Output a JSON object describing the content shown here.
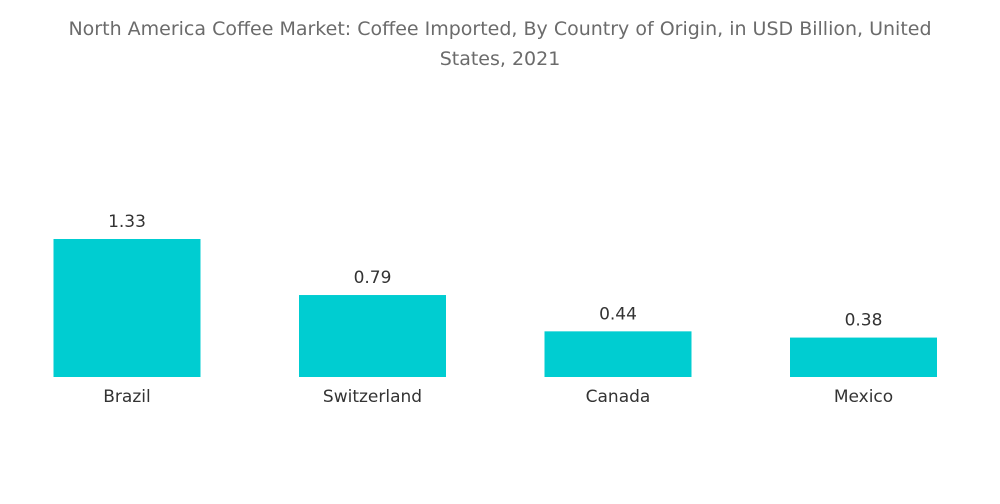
{
  "chart_data": {
    "type": "bar",
    "title_line1": "North America Coffee Market: Coffee Imported, By Country of Origin, in USD Billion, United",
    "title_line2": "States, 2021",
    "categories": [
      "Brazil",
      "Switzerland",
      "Canada",
      "Mexico"
    ],
    "values": [
      1.33,
      0.79,
      0.44,
      0.38
    ],
    "value_labels": [
      "1.33",
      "0.79",
      "0.44",
      "0.38"
    ],
    "xlabel": "",
    "ylabel": "",
    "ylim": [
      0,
      1.33
    ],
    "grid": false,
    "legend": "none",
    "bar_color": "#00CDD1"
  }
}
